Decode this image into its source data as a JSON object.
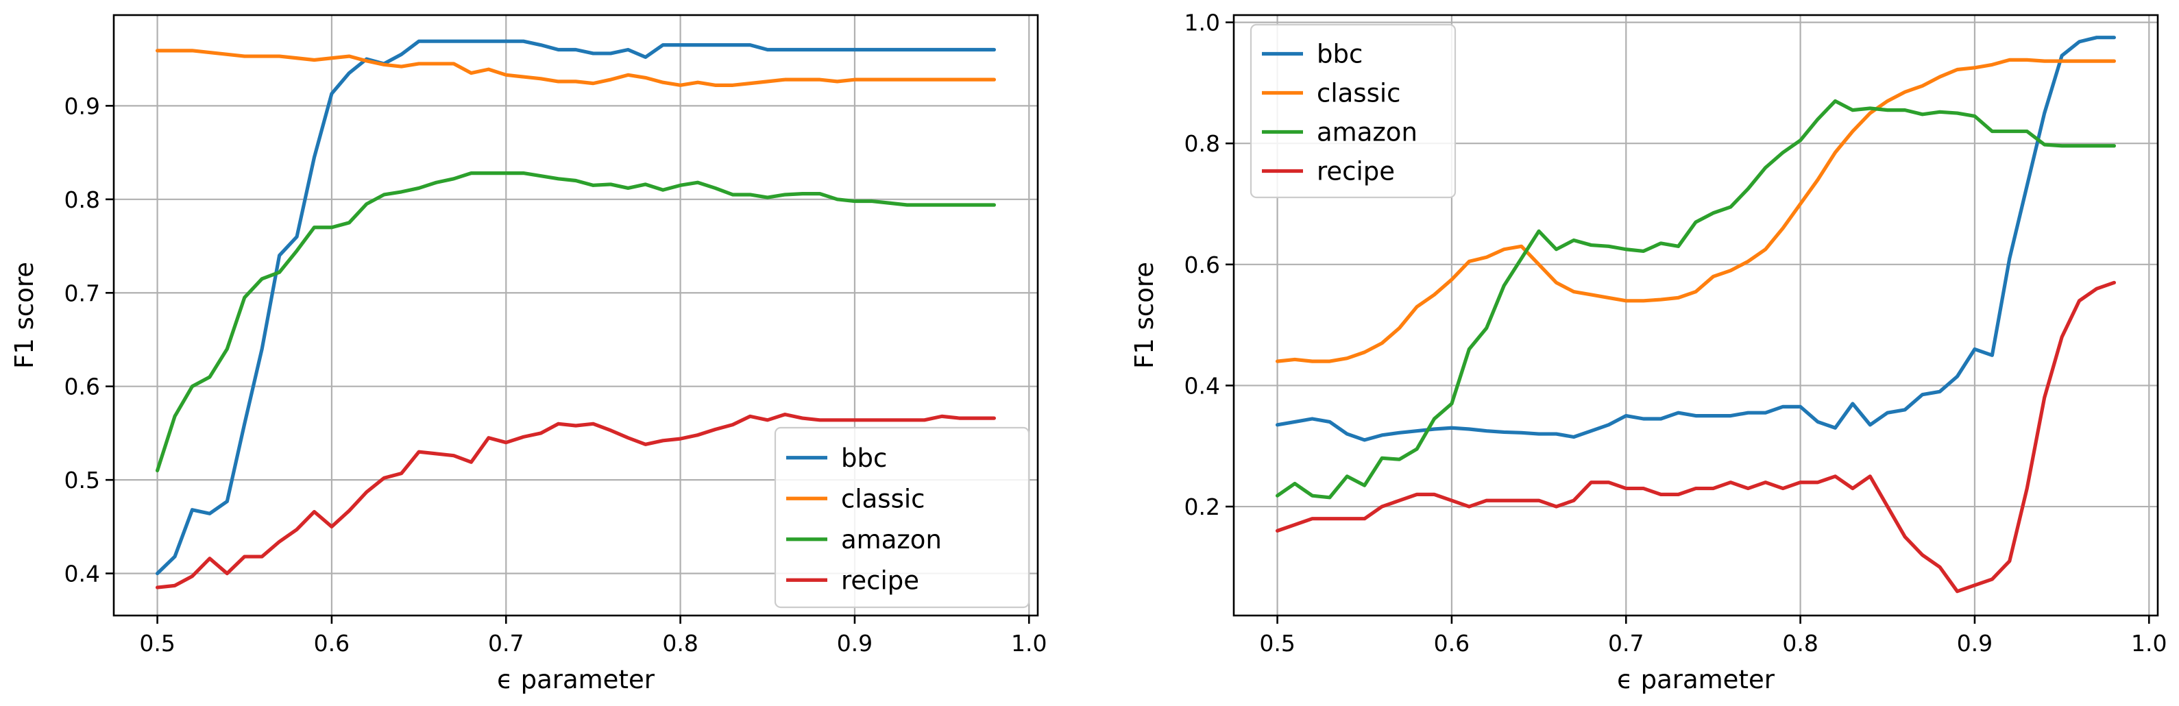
{
  "chart_data": [
    {
      "type": "line",
      "xlabel": "ϵ parameter",
      "ylabel": "F1 score",
      "xlim": [
        0.475,
        1.005
      ],
      "ylim": [
        0.355,
        0.997
      ],
      "xticks": [
        0.5,
        0.6,
        0.7,
        0.8,
        0.9,
        1.0
      ],
      "xtick_labels": [
        "0.5",
        "0.6",
        "0.7",
        "0.8",
        "0.9",
        "1.0"
      ],
      "yticks": [
        0.4,
        0.5,
        0.6,
        0.7,
        0.8,
        0.9
      ],
      "ytick_labels": [
        "0.4",
        "0.5",
        "0.6",
        "0.7",
        "0.8",
        "0.9"
      ],
      "grid": true,
      "legend_position": "lower-right",
      "x": [
        0.5,
        0.51,
        0.52,
        0.53,
        0.54,
        0.55,
        0.56,
        0.57,
        0.58,
        0.59,
        0.6,
        0.61,
        0.62,
        0.63,
        0.64,
        0.65,
        0.66,
        0.67,
        0.68,
        0.69,
        0.7,
        0.71,
        0.72,
        0.73,
        0.74,
        0.75,
        0.76,
        0.77,
        0.78,
        0.79,
        0.8,
        0.81,
        0.82,
        0.83,
        0.84,
        0.85,
        0.86,
        0.87,
        0.88,
        0.89,
        0.9,
        0.91,
        0.92,
        0.93,
        0.94,
        0.95,
        0.96,
        0.97,
        0.98
      ],
      "series": [
        {
          "name": "bbc",
          "color": "#1f77b4",
          "values": [
            0.4,
            0.418,
            0.468,
            0.464,
            0.477,
            0.56,
            0.64,
            0.74,
            0.76,
            0.845,
            0.913,
            0.935,
            0.95,
            0.945,
            0.955,
            0.969,
            0.969,
            0.969,
            0.969,
            0.969,
            0.969,
            0.969,
            0.965,
            0.96,
            0.96,
            0.956,
            0.956,
            0.96,
            0.952,
            0.965,
            0.965,
            0.965,
            0.965,
            0.965,
            0.965,
            0.96,
            0.96,
            0.96,
            0.96,
            0.96,
            0.96,
            0.96,
            0.96,
            0.96,
            0.96,
            0.96,
            0.96,
            0.96,
            0.96
          ]
        },
        {
          "name": "classic",
          "color": "#ff7f0e",
          "values": [
            0.959,
            0.959,
            0.959,
            0.957,
            0.955,
            0.953,
            0.953,
            0.953,
            0.951,
            0.949,
            0.951,
            0.953,
            0.948,
            0.944,
            0.942,
            0.945,
            0.945,
            0.945,
            0.935,
            0.939,
            0.933,
            0.931,
            0.929,
            0.926,
            0.926,
            0.924,
            0.928,
            0.933,
            0.93,
            0.925,
            0.922,
            0.925,
            0.922,
            0.922,
            0.924,
            0.926,
            0.928,
            0.928,
            0.928,
            0.926,
            0.928,
            0.928,
            0.928,
            0.928,
            0.928,
            0.928,
            0.928,
            0.928,
            0.928
          ]
        },
        {
          "name": "amazon",
          "color": "#2ca02c",
          "values": [
            0.51,
            0.568,
            0.6,
            0.61,
            0.64,
            0.695,
            0.715,
            0.722,
            0.745,
            0.77,
            0.77,
            0.775,
            0.795,
            0.805,
            0.808,
            0.812,
            0.818,
            0.822,
            0.828,
            0.828,
            0.828,
            0.828,
            0.825,
            0.822,
            0.82,
            0.815,
            0.816,
            0.812,
            0.816,
            0.81,
            0.815,
            0.818,
            0.812,
            0.805,
            0.805,
            0.802,
            0.805,
            0.806,
            0.806,
            0.8,
            0.798,
            0.798,
            0.796,
            0.794,
            0.794,
            0.794,
            0.794,
            0.794,
            0.794
          ]
        },
        {
          "name": "recipe",
          "color": "#d62728",
          "values": [
            0.385,
            0.387,
            0.397,
            0.416,
            0.4,
            0.418,
            0.418,
            0.434,
            0.447,
            0.466,
            0.45,
            0.467,
            0.487,
            0.502,
            0.507,
            0.53,
            0.528,
            0.526,
            0.519,
            0.545,
            0.54,
            0.546,
            0.55,
            0.56,
            0.558,
            0.56,
            0.553,
            0.545,
            0.538,
            0.542,
            0.544,
            0.548,
            0.554,
            0.559,
            0.568,
            0.564,
            0.57,
            0.566,
            0.564,
            0.564,
            0.564,
            0.564,
            0.564,
            0.564,
            0.564,
            0.568,
            0.566,
            0.566,
            0.566
          ]
        }
      ]
    },
    {
      "type": "line",
      "xlabel": "ϵ parameter",
      "ylabel": "F1 score",
      "xlim": [
        0.475,
        1.005
      ],
      "ylim": [
        0.02,
        1.012
      ],
      "xticks": [
        0.5,
        0.6,
        0.7,
        0.8,
        0.9,
        1.0
      ],
      "xtick_labels": [
        "0.5",
        "0.6",
        "0.7",
        "0.8",
        "0.9",
        "1.0"
      ],
      "yticks": [
        0.2,
        0.4,
        0.6,
        0.8,
        1.0
      ],
      "ytick_labels": [
        "0.2",
        "0.4",
        "0.6",
        "0.8",
        "1.0"
      ],
      "grid": true,
      "legend_position": "upper-left",
      "x": [
        0.5,
        0.51,
        0.52,
        0.53,
        0.54,
        0.55,
        0.56,
        0.57,
        0.58,
        0.59,
        0.6,
        0.61,
        0.62,
        0.63,
        0.64,
        0.65,
        0.66,
        0.67,
        0.68,
        0.69,
        0.7,
        0.71,
        0.72,
        0.73,
        0.74,
        0.75,
        0.76,
        0.77,
        0.78,
        0.79,
        0.8,
        0.81,
        0.82,
        0.83,
        0.84,
        0.85,
        0.86,
        0.87,
        0.88,
        0.89,
        0.9,
        0.91,
        0.92,
        0.93,
        0.94,
        0.95,
        0.96,
        0.97,
        0.98
      ],
      "series": [
        {
          "name": "bbc",
          "color": "#1f77b4",
          "values": [
            0.335,
            0.34,
            0.345,
            0.34,
            0.32,
            0.31,
            0.318,
            0.322,
            0.325,
            0.328,
            0.33,
            0.328,
            0.325,
            0.323,
            0.322,
            0.32,
            0.32,
            0.315,
            0.325,
            0.335,
            0.35,
            0.345,
            0.345,
            0.355,
            0.35,
            0.35,
            0.35,
            0.355,
            0.355,
            0.365,
            0.365,
            0.34,
            0.33,
            0.37,
            0.335,
            0.355,
            0.36,
            0.385,
            0.39,
            0.415,
            0.46,
            0.45,
            0.61,
            0.73,
            0.85,
            0.945,
            0.968,
            0.975,
            0.975
          ]
        },
        {
          "name": "classic",
          "color": "#ff7f0e",
          "values": [
            0.44,
            0.443,
            0.44,
            0.44,
            0.445,
            0.455,
            0.47,
            0.495,
            0.53,
            0.55,
            0.575,
            0.605,
            0.612,
            0.625,
            0.63,
            0.6,
            0.57,
            0.555,
            0.55,
            0.545,
            0.54,
            0.54,
            0.542,
            0.545,
            0.555,
            0.58,
            0.59,
            0.605,
            0.625,
            0.66,
            0.7,
            0.74,
            0.785,
            0.82,
            0.85,
            0.87,
            0.885,
            0.895,
            0.91,
            0.922,
            0.925,
            0.93,
            0.938,
            0.938,
            0.936,
            0.936,
            0.936,
            0.936,
            0.936
          ]
        },
        {
          "name": "amazon",
          "color": "#2ca02c",
          "values": [
            0.218,
            0.238,
            0.218,
            0.215,
            0.25,
            0.235,
            0.28,
            0.278,
            0.295,
            0.345,
            0.37,
            0.46,
            0.495,
            0.565,
            0.61,
            0.655,
            0.625,
            0.64,
            0.632,
            0.63,
            0.625,
            0.622,
            0.635,
            0.63,
            0.67,
            0.685,
            0.695,
            0.725,
            0.76,
            0.785,
            0.805,
            0.84,
            0.87,
            0.855,
            0.858,
            0.855,
            0.855,
            0.848,
            0.852,
            0.85,
            0.845,
            0.82,
            0.82,
            0.82,
            0.798,
            0.796,
            0.796,
            0.796,
            0.796
          ]
        },
        {
          "name": "recipe",
          "color": "#d62728",
          "values": [
            0.16,
            0.17,
            0.18,
            0.18,
            0.18,
            0.18,
            0.2,
            0.21,
            0.22,
            0.22,
            0.21,
            0.2,
            0.21,
            0.21,
            0.21,
            0.21,
            0.2,
            0.21,
            0.24,
            0.24,
            0.23,
            0.23,
            0.22,
            0.22,
            0.23,
            0.23,
            0.24,
            0.23,
            0.24,
            0.23,
            0.24,
            0.24,
            0.25,
            0.23,
            0.25,
            0.2,
            0.15,
            0.12,
            0.1,
            0.06,
            0.07,
            0.08,
            0.11,
            0.23,
            0.38,
            0.48,
            0.54,
            0.56,
            0.57
          ]
        }
      ]
    }
  ]
}
